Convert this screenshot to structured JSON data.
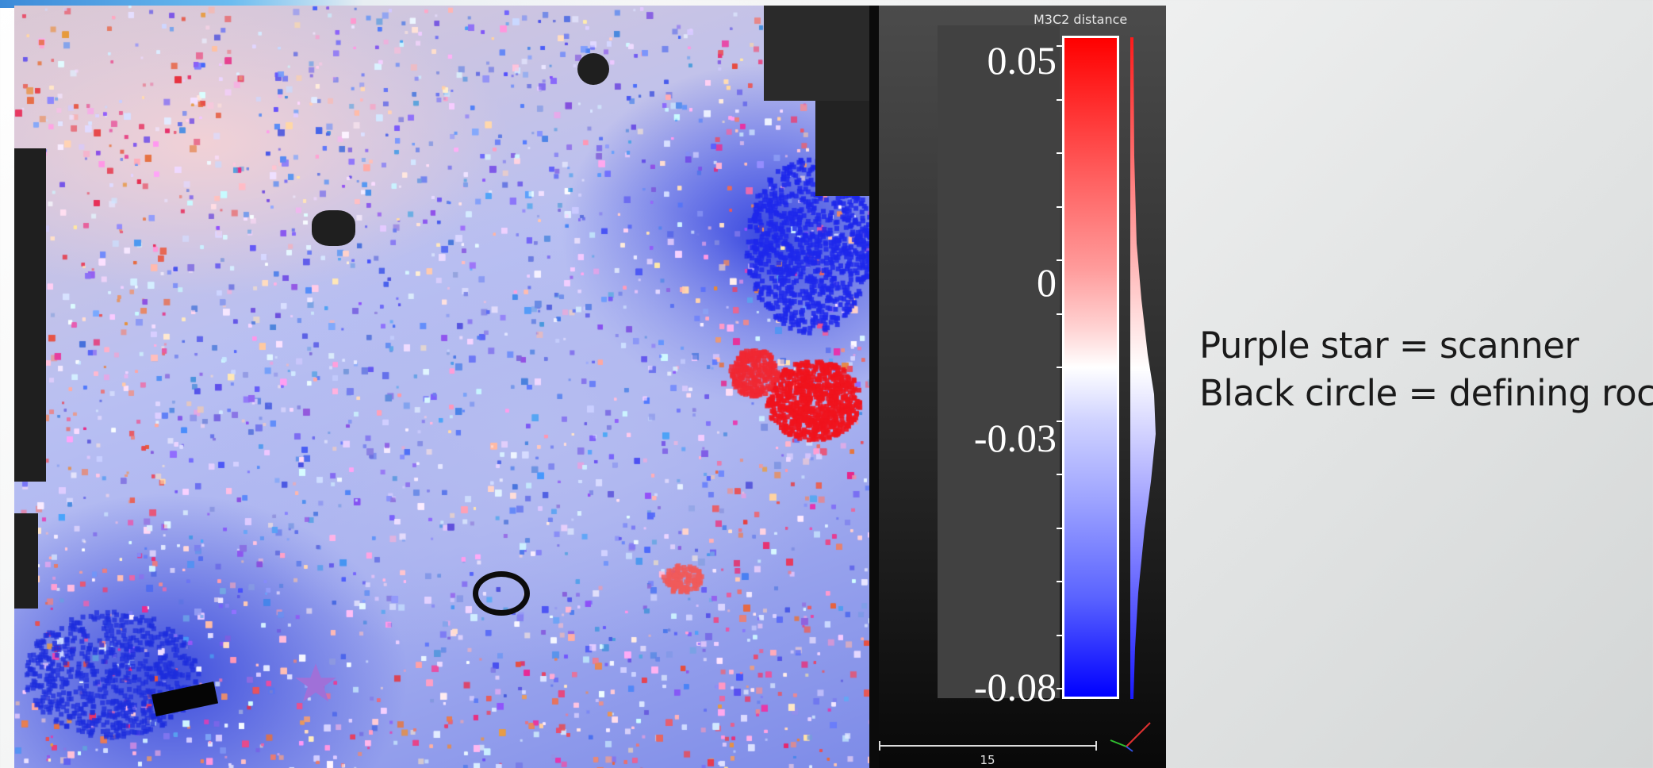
{
  "viewer": {
    "scalar_field_title": "M3C2 distance",
    "color_scale": {
      "labels": [
        "0.05",
        "0",
        "-0.03",
        "-0.08"
      ],
      "max": 0.05,
      "min": -0.08,
      "colors": {
        "high": "#ff0000",
        "mid": "#ffffff",
        "low": "#0000ff"
      }
    },
    "ruler_label": "15",
    "markers": {
      "scanner": {
        "shape": "star",
        "color": "#a070d8"
      },
      "rock": {
        "shape": "circle",
        "color": "#0c0c0c"
      }
    }
  },
  "caption": {
    "line1": "Purple star = scanner",
    "line2": "Black circle = defining rock"
  }
}
